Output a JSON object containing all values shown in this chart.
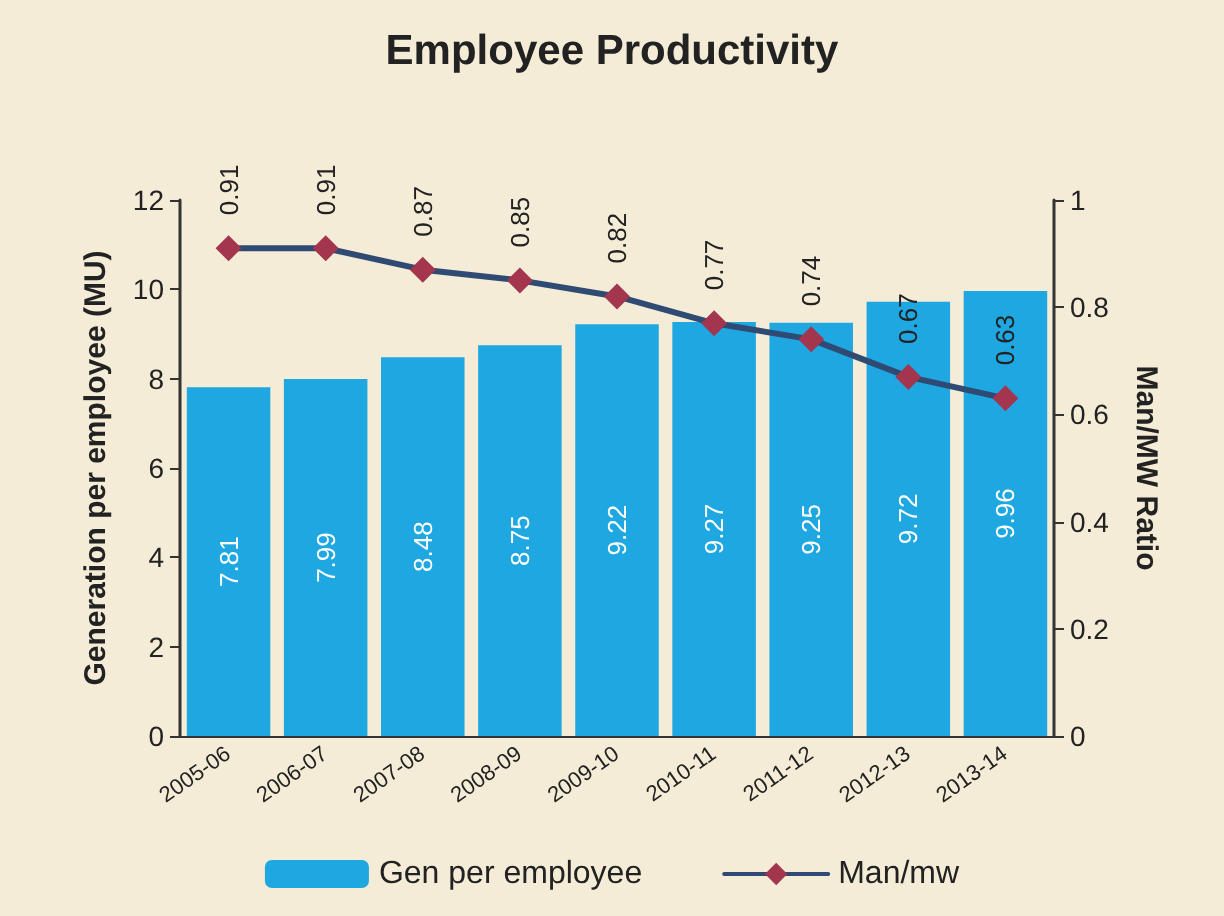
{
  "chart_data": {
    "type": "bar",
    "title": "Employee Productivity",
    "ylabel": "Generation per employee (MU)",
    "y2label": "Man/MW Ratio",
    "categories": [
      "2005-06",
      "2006-07",
      "2007-08",
      "2008-09",
      "2009-10",
      "2010-11",
      "2011-12",
      "2012-13",
      "2013-14"
    ],
    "series": [
      {
        "name": "Gen per employee",
        "color": "#1ea7e1",
        "values": [
          7.81,
          7.99,
          8.48,
          8.75,
          9.22,
          9.27,
          9.25,
          9.72,
          9.96
        ]
      },
      {
        "name": "Man/mw",
        "type": "line",
        "axis": "y2",
        "color": "#a3354f",
        "values": [
          0.91,
          0.91,
          0.87,
          0.85,
          0.82,
          0.77,
          0.74,
          0.67,
          0.63
        ]
      }
    ],
    "ylim": [
      0,
      12
    ],
    "yticks": [
      0,
      2,
      4,
      6,
      8,
      10,
      12
    ],
    "y2lim": [
      0,
      1
    ],
    "y2ticks": [
      0,
      0.2,
      0.4,
      0.6,
      0.8,
      1
    ],
    "data_labels": true,
    "legend": "bottom",
    "grid": false,
    "marker": "diamond",
    "line_style": "solid"
  }
}
